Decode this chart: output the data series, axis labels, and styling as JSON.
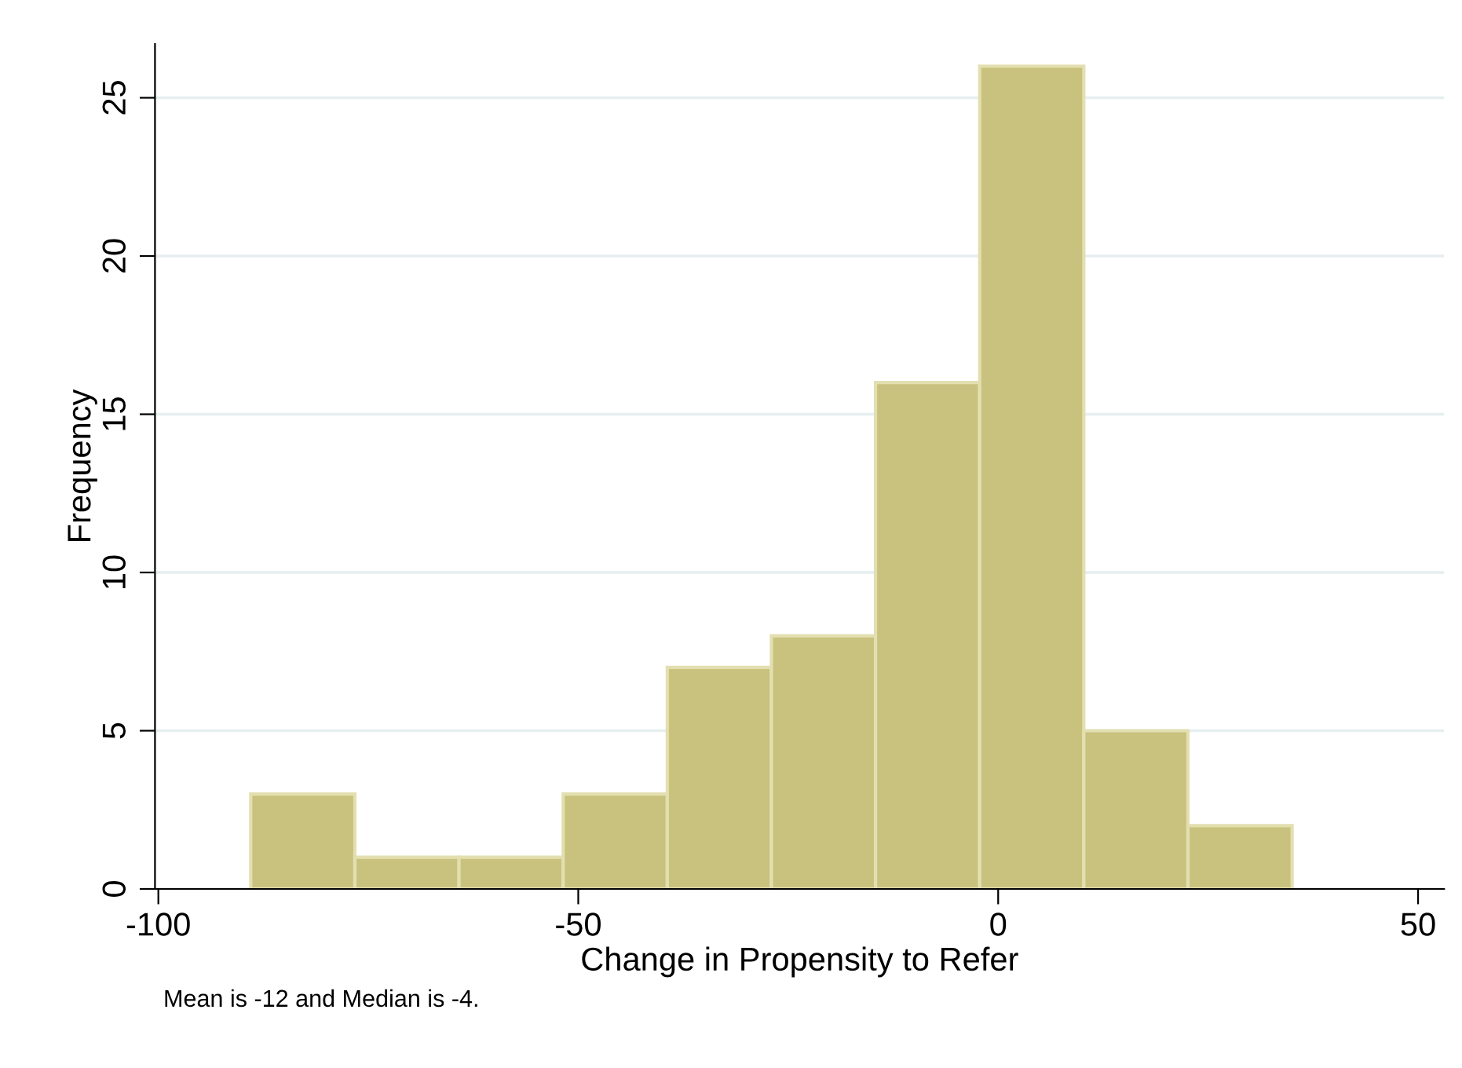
{
  "chart_data": {
    "type": "histogram",
    "xlabel": "Change in Propensity to Refer",
    "ylabel": "Frequency",
    "bins": [
      -89,
      -76.6,
      -64.2,
      -51.8,
      -39.4,
      -27,
      -14.6,
      -2.2,
      10.2,
      22.6,
      35
    ],
    "values": [
      3,
      1,
      1,
      3,
      7,
      8,
      16,
      26,
      5,
      2
    ],
    "color": "#c9c27e",
    "xlim": [
      -100.4,
      53.1
    ],
    "xticks": [
      -100,
      -50,
      0,
      50
    ],
    "ylim": [
      0,
      26.7
    ],
    "yticks": [
      0,
      5,
      10,
      15,
      20,
      25
    ],
    "grid": "y",
    "annotations": [
      "Mean is -12 and Median is -4."
    ]
  }
}
